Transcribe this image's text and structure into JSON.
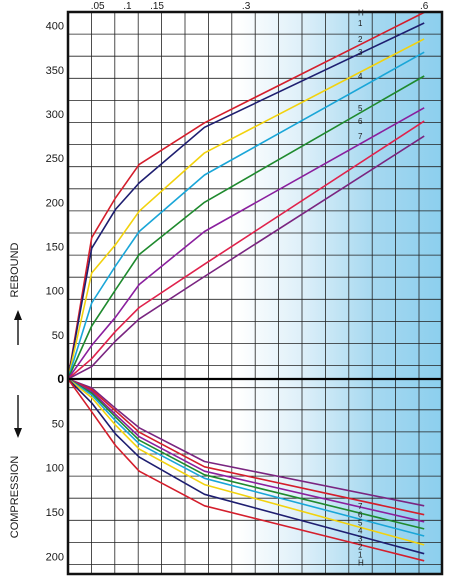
{
  "chart_data": {
    "type": "line",
    "x_ticks": [
      ".05",
      ".1",
      ".15",
      ".3",
      ".6"
    ],
    "x_tick_values": [
      0.05,
      0.1,
      0.15,
      0.3,
      0.6
    ],
    "xlim": [
      0,
      0.63
    ],
    "rebound_ticks": [
      "400",
      "350",
      "300",
      "250",
      "200",
      "150",
      "100",
      "50"
    ],
    "rebound_tick_values": [
      400,
      350,
      300,
      250,
      200,
      150,
      100,
      50
    ],
    "compression_ticks": [
      "50",
      "100",
      "150",
      "200"
    ],
    "compression_tick_values": [
      50,
      100,
      150,
      200
    ],
    "zero_label": "0",
    "ylabel_top": "REBOUND",
    "ylabel_bottom": "COMPRESSION",
    "grid": true,
    "x": [
      0,
      0.04,
      0.08,
      0.12,
      0.23,
      0.6
    ],
    "rebound_series": [
      {
        "label": "H",
        "color": "#d41e2c",
        "values": [
          0,
          160,
          205,
          243,
          290,
          415
        ]
      },
      {
        "label": "1",
        "color": "#1e1e70",
        "values": [
          0,
          148,
          192,
          222,
          285,
          403
        ]
      },
      {
        "label": "2",
        "color": "#f2d20d",
        "values": [
          0,
          120,
          152,
          190,
          256,
          385
        ]
      },
      {
        "label": "3",
        "color": "#1aa6d8",
        "values": [
          0,
          86,
          128,
          167,
          231,
          370
        ]
      },
      {
        "label": "4",
        "color": "#1f8a2e",
        "values": [
          0,
          60,
          101,
          141,
          200,
          343
        ]
      },
      {
        "label": "5",
        "color": "#8a1f9e",
        "values": [
          0,
          38,
          70,
          107,
          167,
          307
        ]
      },
      {
        "label": "6",
        "color": "#e0224c",
        "values": [
          0,
          23,
          54,
          81,
          130,
          292
        ]
      },
      {
        "label": "7",
        "color": "#7a2580",
        "values": [
          0,
          14,
          43,
          68,
          116,
          275
        ]
      }
    ],
    "compression_series": [
      {
        "label": "7",
        "color": "#7a2580",
        "values": [
          0,
          10,
          33,
          55,
          93,
          143
        ]
      },
      {
        "label": "6",
        "color": "#d41e2c",
        "values": [
          0,
          12,
          36,
          60,
          99,
          153
        ]
      },
      {
        "label": "5",
        "color": "#8a1f9e",
        "values": [
          0,
          14,
          40,
          65,
          104,
          161
        ]
      },
      {
        "label": "4",
        "color": "#1f8a2e",
        "values": [
          0,
          16,
          43,
          69,
          108,
          169
        ]
      },
      {
        "label": "3",
        "color": "#1aa6d8",
        "values": [
          0,
          18,
          47,
          73,
          112,
          177
        ]
      },
      {
        "label": "2",
        "color": "#f2d20d",
        "values": [
          0,
          21,
          52,
          79,
          119,
          187
        ]
      },
      {
        "label": "1",
        "color": "#1e1e70",
        "values": [
          0,
          27,
          62,
          88,
          130,
          197
        ]
      },
      {
        "label": "H",
        "color": "#d41e2c",
        "values": [
          0,
          37,
          75,
          104,
          143,
          205
        ]
      }
    ]
  }
}
